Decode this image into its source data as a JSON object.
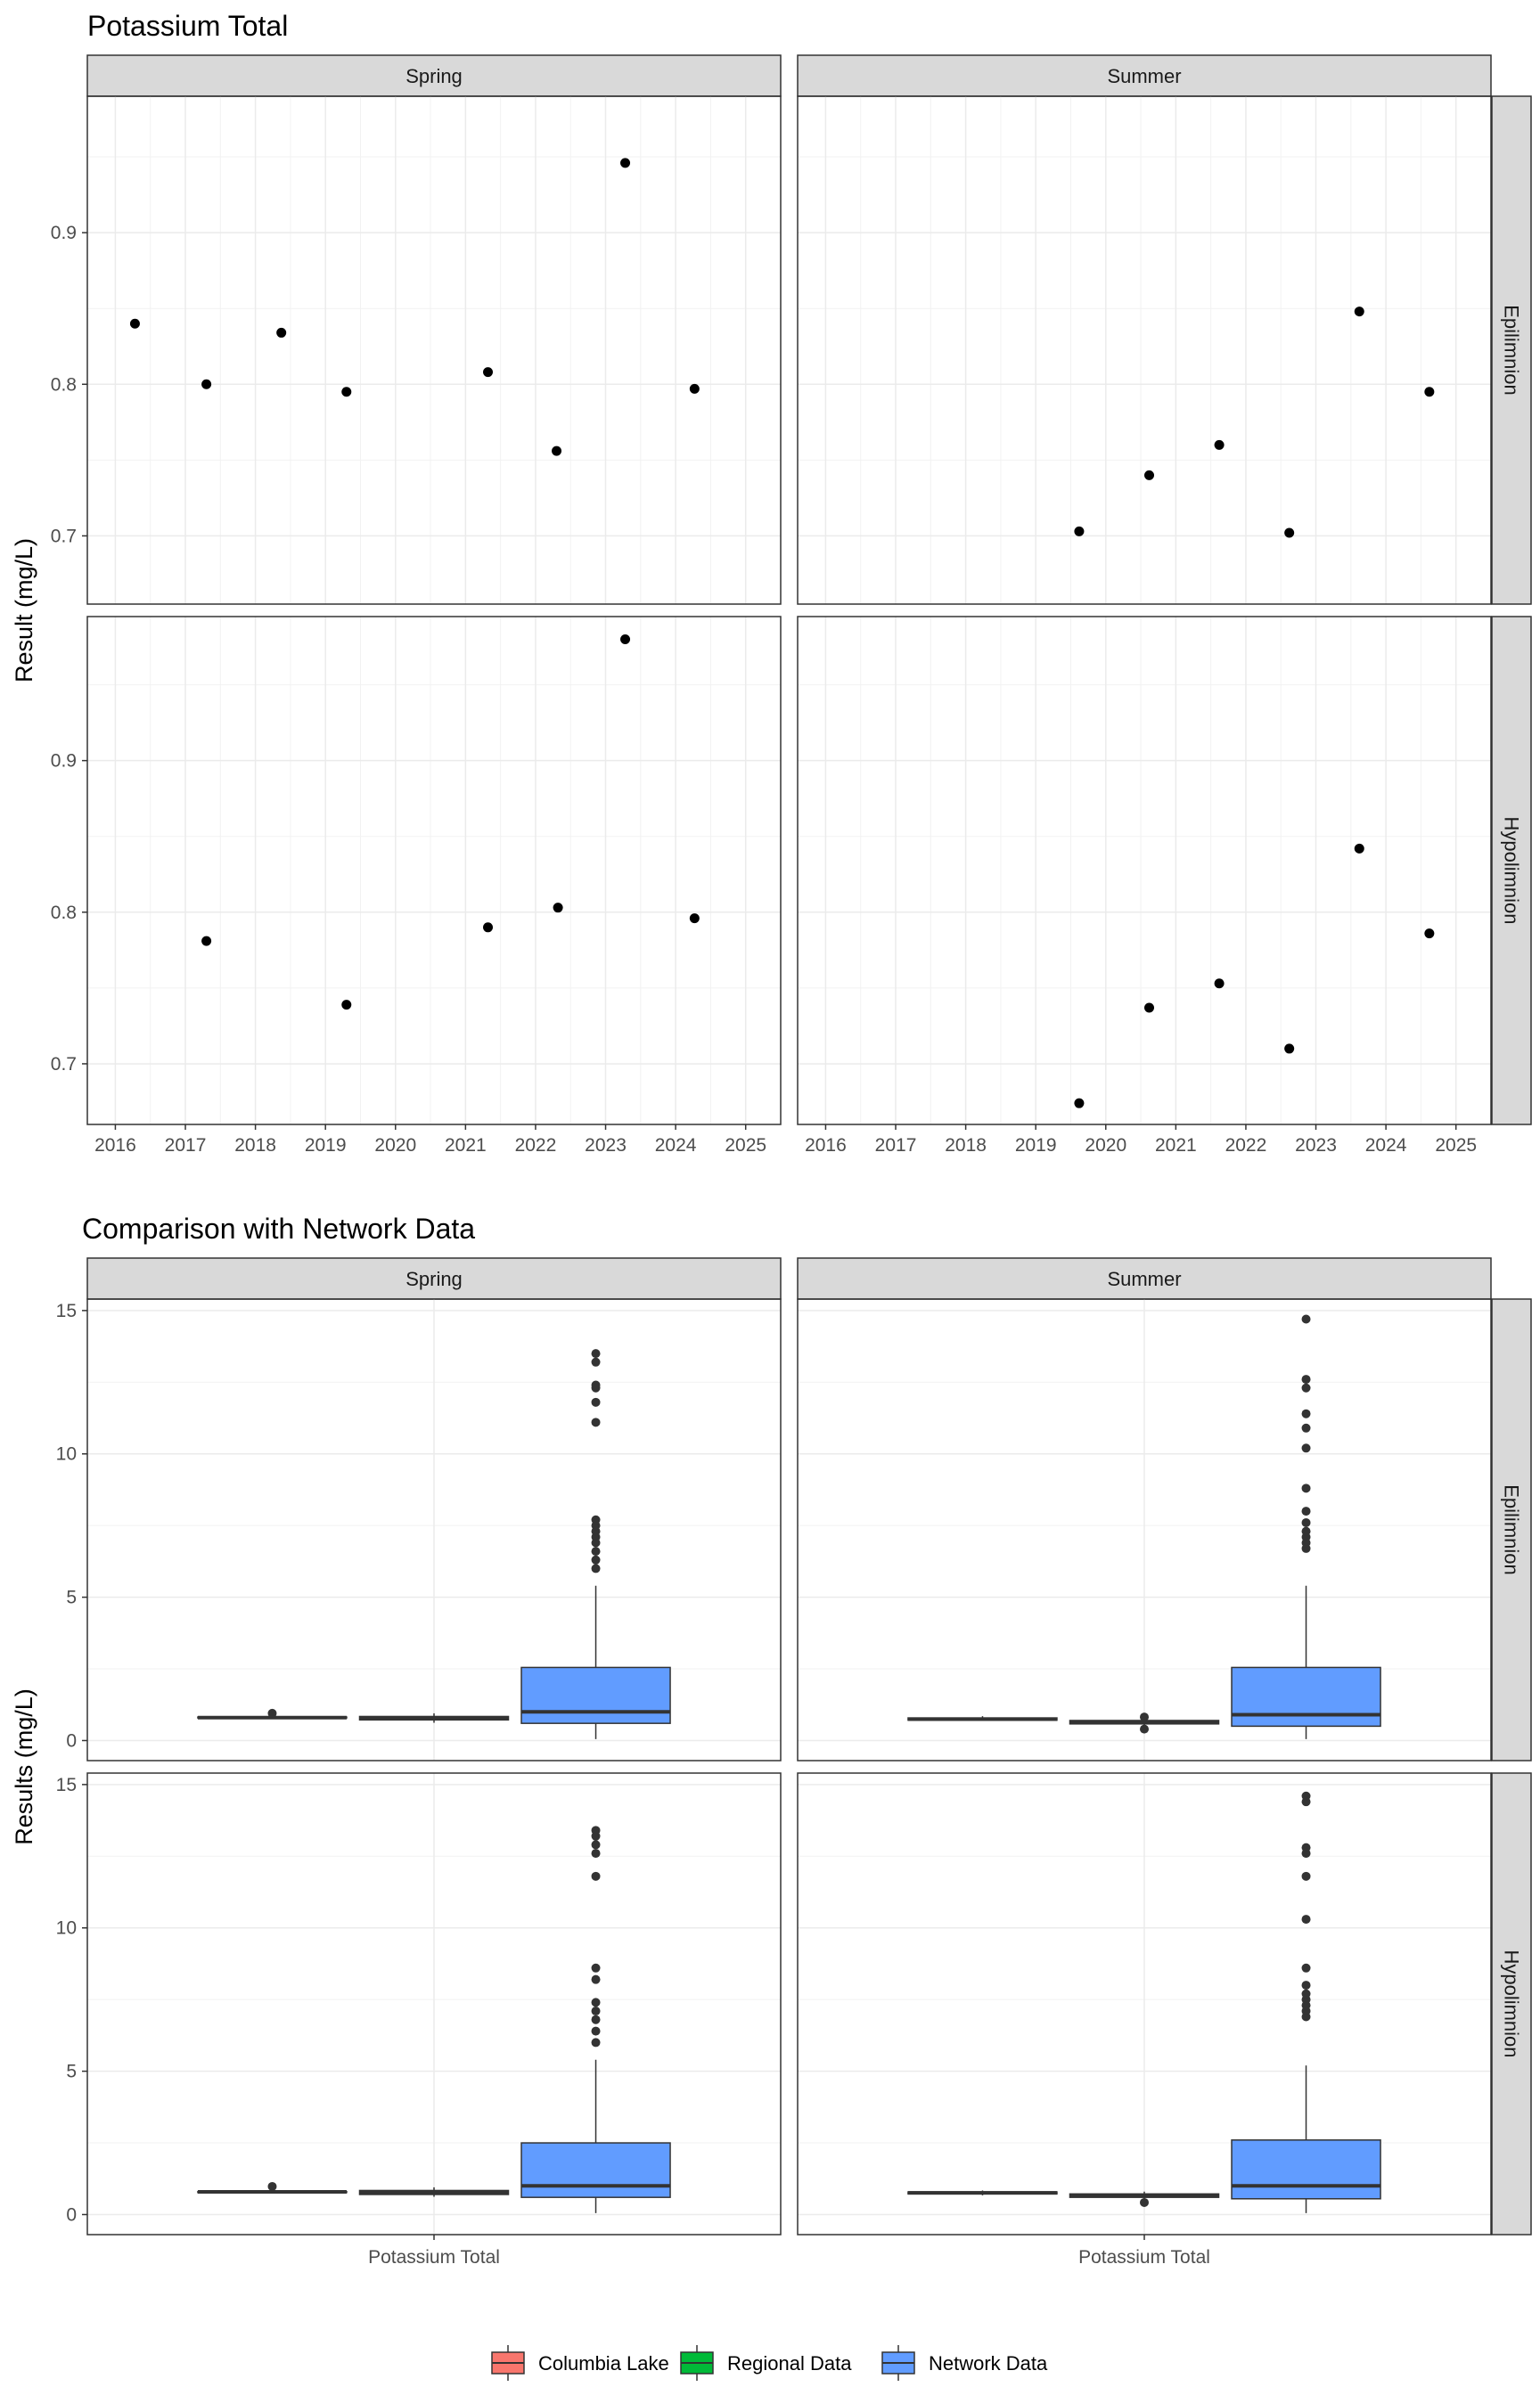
{
  "chart_data": [
    {
      "type": "scatter",
      "title": "Potassium Total",
      "ylabel": "Result (mg/L)",
      "columns": [
        "Spring",
        "Summer"
      ],
      "rows": [
        "Epilimnion",
        "Hypolimnion"
      ],
      "x_ticks": [
        "2016",
        "2017",
        "2018",
        "2019",
        "2020",
        "2021",
        "2022",
        "2023",
        "2024",
        "2025"
      ],
      "xlim": [
        2015.6,
        2025.5
      ],
      "y_ticks": [
        "0.7",
        "0.8",
        "0.9"
      ],
      "ylim_rows": [
        [
          0.655,
          0.99
        ],
        [
          0.66,
          0.995
        ]
      ],
      "grid": true,
      "panels": [
        {
          "column": "Spring",
          "row": "Epilimnion",
          "x": [
            2016.28,
            2017.3,
            2018.37,
            2019.3,
            2021.32,
            2022.3,
            2023.28,
            2024.27
          ],
          "y": [
            0.84,
            0.8,
            0.834,
            0.795,
            0.808,
            0.756,
            0.946,
            0.797
          ]
        },
        {
          "column": "Summer",
          "row": "Epilimnion",
          "x": [
            2019.62,
            2020.62,
            2021.62,
            2022.62,
            2023.62,
            2024.62
          ],
          "y": [
            0.703,
            0.74,
            0.76,
            0.702,
            0.848,
            0.795
          ]
        },
        {
          "column": "Spring",
          "row": "Hypolimnion",
          "x": [
            2017.3,
            2019.3,
            2021.32,
            2022.32,
            2023.28,
            2024.27
          ],
          "y": [
            0.781,
            0.739,
            0.79,
            0.803,
            0.98,
            0.796
          ]
        },
        {
          "column": "Summer",
          "row": "Hypolimnion",
          "x": [
            2019.62,
            2020.62,
            2021.62,
            2022.62,
            2023.62,
            2024.62
          ],
          "y": [
            0.674,
            0.737,
            0.753,
            0.71,
            0.842,
            0.786
          ]
        }
      ]
    },
    {
      "type": "box",
      "title": "Comparison with Network Data",
      "ylabel": "Results (mg/L)",
      "xlabel_tick": "Potassium Total",
      "columns": [
        "Spring",
        "Summer"
      ],
      "rows": [
        "Epilimnion",
        "Hypolimnion"
      ],
      "y_ticks": [
        "0",
        "5",
        "10",
        "15"
      ],
      "ylim": [
        -0.7,
        15.4
      ],
      "legend": {
        "position": "bottom",
        "entries": [
          {
            "name": "Columbia Lake",
            "color": "#F8766D"
          },
          {
            "name": "Regional Data",
            "color": "#00BA38"
          },
          {
            "name": "Network Data",
            "color": "#619CFF"
          }
        ]
      },
      "panels": [
        {
          "column": "Spring",
          "row": "Epilimnion",
          "boxes": [
            {
              "group": "Columbia Lake",
              "q1": 0.79,
              "median": 0.8,
              "q3": 0.82,
              "whisker_low": 0.76,
              "whisker_high": 0.85,
              "outliers": [
                0.95
              ]
            },
            {
              "group": "Regional Data",
              "q1": 0.72,
              "median": 0.78,
              "q3": 0.84,
              "whisker_low": 0.62,
              "whisker_high": 0.95,
              "outliers": []
            },
            {
              "group": "Network Data",
              "q1": 0.6,
              "median": 1.0,
              "q3": 2.55,
              "whisker_low": 0.05,
              "whisker_high": 5.4,
              "outliers": [
                6.0,
                6.3,
                6.6,
                6.9,
                7.1,
                7.3,
                7.5,
                7.7,
                11.1,
                11.8,
                12.3,
                12.4,
                13.2,
                13.5
              ]
            }
          ]
        },
        {
          "column": "Summer",
          "row": "Epilimnion",
          "boxes": [
            {
              "group": "Columbia Lake",
              "q1": 0.71,
              "median": 0.745,
              "q3": 0.79,
              "whisker_low": 0.7,
              "whisker_high": 0.85,
              "outliers": []
            },
            {
              "group": "Regional Data",
              "q1": 0.58,
              "median": 0.65,
              "q3": 0.7,
              "whisker_low": 0.48,
              "whisker_high": 0.78,
              "outliers": [
                0.4,
                0.82
              ]
            },
            {
              "group": "Network Data",
              "q1": 0.5,
              "median": 0.9,
              "q3": 2.55,
              "whisker_low": 0.05,
              "whisker_high": 5.4,
              "outliers": [
                6.7,
                6.9,
                7.1,
                7.3,
                7.6,
                8.0,
                8.8,
                10.2,
                10.9,
                11.4,
                12.3,
                12.6,
                14.7
              ]
            }
          ]
        },
        {
          "column": "Spring",
          "row": "Hypolimnion",
          "boxes": [
            {
              "group": "Columbia Lake",
              "q1": 0.77,
              "median": 0.79,
              "q3": 0.8,
              "whisker_low": 0.74,
              "whisker_high": 0.81,
              "outliers": [
                0.98
              ]
            },
            {
              "group": "Regional Data",
              "q1": 0.7,
              "median": 0.77,
              "q3": 0.84,
              "whisker_low": 0.62,
              "whisker_high": 0.95,
              "outliers": []
            },
            {
              "group": "Network Data",
              "q1": 0.6,
              "median": 1.0,
              "q3": 2.5,
              "whisker_low": 0.05,
              "whisker_high": 5.4,
              "outliers": [
                6.0,
                6.4,
                6.8,
                7.1,
                7.4,
                8.2,
                8.6,
                11.8,
                12.6,
                12.9,
                13.2,
                13.4
              ]
            }
          ]
        },
        {
          "column": "Summer",
          "row": "Hypolimnion",
          "boxes": [
            {
              "group": "Columbia Lake",
              "q1": 0.72,
              "median": 0.755,
              "q3": 0.79,
              "whisker_low": 0.67,
              "whisker_high": 0.84,
              "outliers": []
            },
            {
              "group": "Regional Data",
              "q1": 0.6,
              "median": 0.66,
              "q3": 0.72,
              "whisker_low": 0.5,
              "whisker_high": 0.8,
              "outliers": [
                0.42
              ]
            },
            {
              "group": "Network Data",
              "q1": 0.55,
              "median": 1.0,
              "q3": 2.6,
              "whisker_low": 0.05,
              "whisker_high": 5.2,
              "outliers": [
                6.9,
                7.1,
                7.3,
                7.5,
                7.7,
                8.0,
                8.6,
                10.3,
                11.8,
                12.6,
                12.8,
                14.4,
                14.6
              ]
            }
          ]
        }
      ]
    }
  ]
}
